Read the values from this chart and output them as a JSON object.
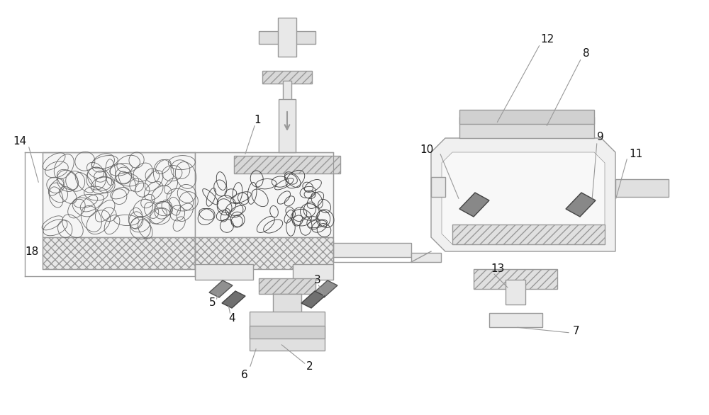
{
  "bg_color": "#ffffff",
  "lc": "#999999",
  "dc": "#555555",
  "fc_light": "#eeeeee",
  "fc_mid": "#dddddd",
  "fc_dark": "#cccccc",
  "fc_sensor": "#888888"
}
